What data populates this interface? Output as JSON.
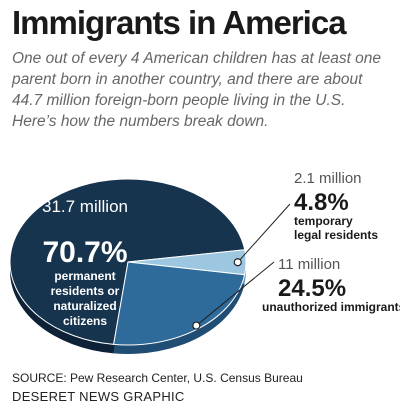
{
  "header": {
    "title": "Immigrants in America",
    "subtitle": "One out of every 4 American children has at least one parent born in another country, and there are about 44.7 million foreign-born people living in the U.S. Here’s how the numbers break down."
  },
  "chart_data": {
    "type": "pie",
    "title": "",
    "slices": [
      {
        "amount": "31.7 million",
        "value": 70.7,
        "percent_label": "70.7%",
        "label_lines": [
          "permanent",
          "residents or",
          "naturalized",
          "citizens"
        ],
        "color": "#17344f"
      },
      {
        "amount": "2.1 million",
        "value": 4.8,
        "percent_label": "4.8%",
        "label_lines": [
          "temporary",
          "legal residents"
        ],
        "color": "#9dc7e0"
      },
      {
        "amount": "11 million",
        "value": 24.5,
        "percent_label": "24.5%",
        "label_lines": [
          "unauthorized immigrants"
        ],
        "color": "#2e6b9b"
      }
    ]
  },
  "footer": {
    "source": "SOURCE: Pew Research Center, U.S. Census Bureau",
    "credit": "DESERET NEWS GRAPHIC"
  }
}
